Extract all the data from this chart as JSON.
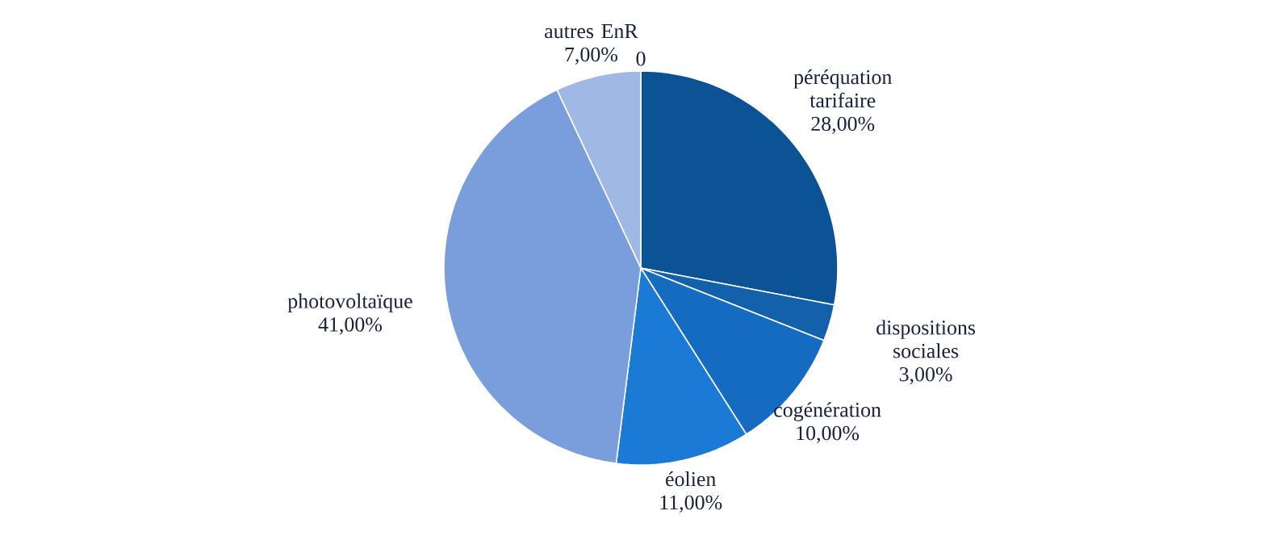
{
  "chart_data": {
    "type": "pie",
    "categories": [
      "péréquation tarifaire",
      "dispositions sociales",
      "cogénération",
      "éolien",
      "photovoltaïque",
      "autres EnR"
    ],
    "values": [
      28,
      3,
      10,
      11,
      41,
      7
    ],
    "value_labels": [
      "28,00%",
      "3,00%",
      "10,00%",
      "11,00%",
      "41,00%",
      "7,00%"
    ],
    "colors": [
      "#0b5394",
      "#1461ab",
      "#156bc0",
      "#1a7ad6",
      "#7a9edc",
      "#a0b8e4"
    ],
    "annotations": [
      "0"
    ]
  }
}
